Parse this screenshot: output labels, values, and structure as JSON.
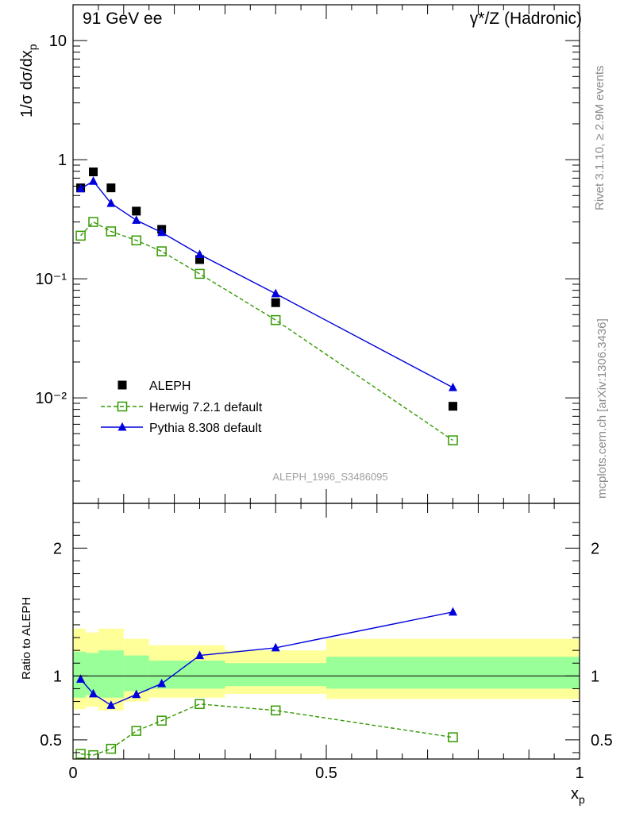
{
  "header": {
    "left": "91 GeV ee",
    "right": "γ*/Z (Hadronic)"
  },
  "side": {
    "rivet": "Rivet 3.1.10, ≥ 2.9M events",
    "mcplots": "mcplots.cern.ch [arXiv:1306.3436]"
  },
  "watermark": "ALEPH_1996_S3486095",
  "axes": {
    "main_ylabel": "1/σ dσ/dx_p",
    "ratio_ylabel": "Ratio to ALEPH",
    "xlabel": "x_p"
  },
  "chart_data": [
    {
      "type": "scatter",
      "panel": "main",
      "yscale": "log",
      "ylim": [
        0.0013,
        20
      ],
      "xlim": [
        0,
        1
      ],
      "yticklabels": [
        "10⁻²",
        "10⁻¹",
        "1",
        "10"
      ],
      "legend_position": "bottom-left",
      "x": [
        0.015,
        0.04,
        0.075,
        0.125,
        0.175,
        0.25,
        0.4,
        0.75
      ],
      "series": [
        {
          "name": "ALEPH",
          "style": "marker",
          "color": "#000000",
          "values": [
            0.58,
            0.79,
            0.58,
            0.37,
            0.26,
            0.145,
            0.063,
            0.0085
          ]
        },
        {
          "name": "Herwig 7.2.1 default",
          "style": "dashed-open-square",
          "color": "#339900",
          "values": [
            0.23,
            0.3,
            0.25,
            0.21,
            0.17,
            0.11,
            0.045,
            0.0044
          ]
        },
        {
          "name": "Pythia 8.308 default",
          "style": "line-triangle",
          "color": "#0000dd",
          "values": [
            0.57,
            0.66,
            0.43,
            0.31,
            0.245,
            0.16,
            0.075,
            0.0122
          ]
        }
      ]
    },
    {
      "type": "line",
      "panel": "ratio",
      "ylim": [
        0.35,
        2.35
      ],
      "xlim": [
        0,
        1
      ],
      "yticklabels": [
        "0.5",
        "1",
        "2"
      ],
      "xticklabels": [
        "0",
        "0.5",
        "1"
      ],
      "x": [
        0.015,
        0.04,
        0.075,
        0.125,
        0.175,
        0.25,
        0.4,
        0.75
      ],
      "bands": [
        {
          "x0": 0.0,
          "x1": 0.025,
          "y_lo": 0.74,
          "y_hi": 1.37,
          "g_lo": 0.83,
          "g_hi": 1.19
        },
        {
          "x0": 0.025,
          "x1": 0.05,
          "y_lo": 0.76,
          "y_hi": 1.34,
          "g_lo": 0.85,
          "g_hi": 1.18
        },
        {
          "x0": 0.05,
          "x1": 0.1,
          "y_lo": 0.73,
          "y_hi": 1.37,
          "g_lo": 0.83,
          "g_hi": 1.2
        },
        {
          "x0": 0.1,
          "x1": 0.15,
          "y_lo": 0.8,
          "y_hi": 1.29,
          "g_lo": 0.88,
          "g_hi": 1.16
        },
        {
          "x0": 0.15,
          "x1": 0.3,
          "y_lo": 0.83,
          "y_hi": 1.24,
          "g_lo": 0.9,
          "g_hi": 1.12
        },
        {
          "x0": 0.3,
          "x1": 0.5,
          "y_lo": 0.86,
          "y_hi": 1.2,
          "g_lo": 0.92,
          "g_hi": 1.1
        },
        {
          "x0": 0.5,
          "x1": 1.0,
          "y_lo": 0.82,
          "y_hi": 1.29,
          "g_lo": 0.9,
          "g_hi": 1.15
        }
      ],
      "series": [
        {
          "name": "Herwig 7.2.1 default",
          "style": "dashed-open-square",
          "color": "#339900",
          "values": [
            0.39,
            0.38,
            0.43,
            0.57,
            0.65,
            0.78,
            0.73,
            0.52
          ]
        },
        {
          "name": "Pythia 8.308 default",
          "style": "line-triangle",
          "color": "#0000dd",
          "values": [
            0.975,
            0.86,
            0.77,
            0.855,
            0.94,
            1.16,
            1.22,
            1.5
          ]
        }
      ]
    }
  ]
}
